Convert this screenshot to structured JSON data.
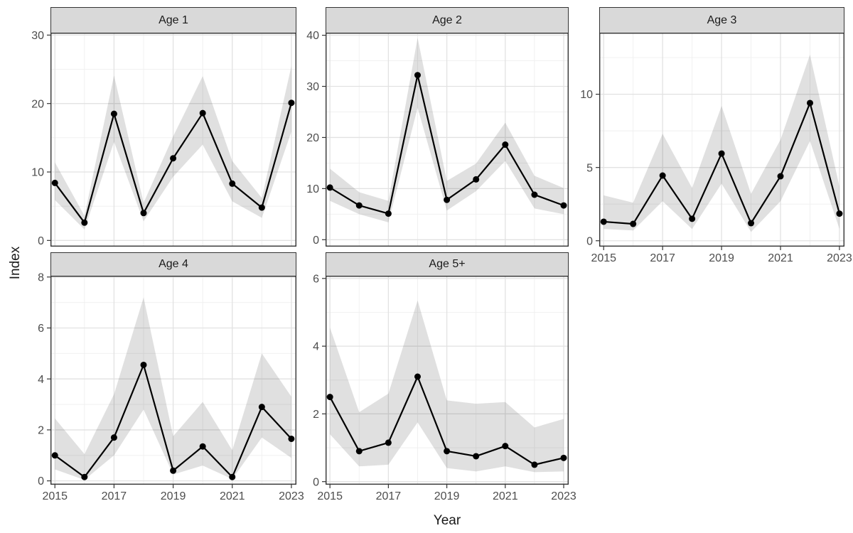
{
  "chart_data": {
    "type": "line",
    "title": "",
    "xlabel": "Year",
    "ylabel": "Index",
    "legend": "none",
    "grid": "on",
    "ribbon": "confidence-band",
    "line_color": "#000000",
    "ribbon_color": "rgba(0,0,0,0.12)",
    "strip_background": "#D9D9D9",
    "x": [
      2015,
      2016,
      2017,
      2018,
      2019,
      2020,
      2021,
      2022,
      2023
    ],
    "x_ticks": [
      2015,
      2017,
      2019,
      2021,
      2023
    ],
    "x_minor": [
      2016,
      2018,
      2020,
      2022
    ],
    "xlim": [
      2014.85,
      2023.17
    ],
    "panels": [
      {
        "label": "Age 1",
        "values": [
          8.4,
          2.6,
          18.5,
          4.0,
          12.0,
          18.6,
          8.3,
          4.8,
          20.1
        ],
        "lower": [
          5.9,
          1.6,
          14.4,
          2.8,
          9.3,
          14.0,
          5.7,
          3.3,
          15.9
        ],
        "upper": [
          11.4,
          3.6,
          24.1,
          5.5,
          15.2,
          24.0,
          11.6,
          6.2,
          25.5
        ],
        "y_ticks": [
          0,
          10,
          20,
          30
        ],
        "y_minor": [
          5,
          15,
          25
        ],
        "ylim": [
          -0.9,
          30.35
        ],
        "show_x_axis": false
      },
      {
        "label": "Age 2",
        "values": [
          10.2,
          6.7,
          5.1,
          32.2,
          7.8,
          11.8,
          18.6,
          8.8,
          6.7
        ],
        "lower": [
          7.6,
          5.0,
          3.4,
          25.8,
          5.7,
          9.5,
          15.4,
          6.1,
          5.0
        ],
        "upper": [
          13.9,
          9.3,
          7.6,
          39.5,
          11.5,
          14.9,
          22.9,
          12.5,
          10.1
        ],
        "y_ticks": [
          0,
          10,
          20,
          30,
          40
        ],
        "y_minor": [
          5,
          15,
          25,
          35
        ],
        "ylim": [
          -1.35,
          40.5
        ],
        "show_x_axis": false
      },
      {
        "label": "Age 3",
        "values": [
          1.3,
          1.15,
          4.45,
          1.5,
          5.95,
          1.2,
          4.4,
          9.4,
          1.85
        ],
        "lower": [
          0.8,
          0.7,
          2.7,
          0.8,
          3.9,
          0.6,
          2.7,
          6.8,
          0.8
        ],
        "upper": [
          3.1,
          2.6,
          7.3,
          3.6,
          9.2,
          3.2,
          6.9,
          12.7,
          3.7
        ],
        "y_ticks": [
          0,
          5,
          10
        ],
        "y_minor": [
          2.5,
          7.5,
          12.5
        ],
        "ylim": [
          -0.4,
          14.2
        ],
        "show_x_axis": true
      },
      {
        "label": "Age 4",
        "values": [
          1.0,
          0.15,
          1.7,
          4.55,
          0.4,
          1.35,
          0.15,
          2.9,
          1.65
        ],
        "lower": [
          0.45,
          0.04,
          1.0,
          2.8,
          0.25,
          0.6,
          0.07,
          1.7,
          0.9
        ],
        "upper": [
          2.45,
          1.05,
          3.4,
          7.2,
          1.75,
          3.1,
          1.2,
          5.0,
          3.3
        ],
        "y_ticks": [
          0,
          2,
          4,
          6,
          8
        ],
        "y_minor": [
          1,
          3,
          5,
          7
        ],
        "ylim": [
          -0.15,
          8.05
        ],
        "show_x_axis": true
      },
      {
        "label": "Age 5+",
        "values": [
          2.5,
          0.9,
          1.15,
          3.1,
          0.9,
          0.75,
          1.05,
          0.5,
          0.7
        ],
        "lower": [
          1.4,
          0.45,
          0.5,
          1.75,
          0.4,
          0.3,
          0.45,
          0.28,
          0.3
        ],
        "upper": [
          4.55,
          2.05,
          2.6,
          5.35,
          2.4,
          2.3,
          2.35,
          1.6,
          1.85
        ],
        "y_ticks": [
          0,
          2,
          4,
          6
        ],
        "y_minor": [
          1,
          3,
          5
        ],
        "ylim": [
          -0.09,
          6.08
        ],
        "show_x_axis": true
      }
    ]
  }
}
